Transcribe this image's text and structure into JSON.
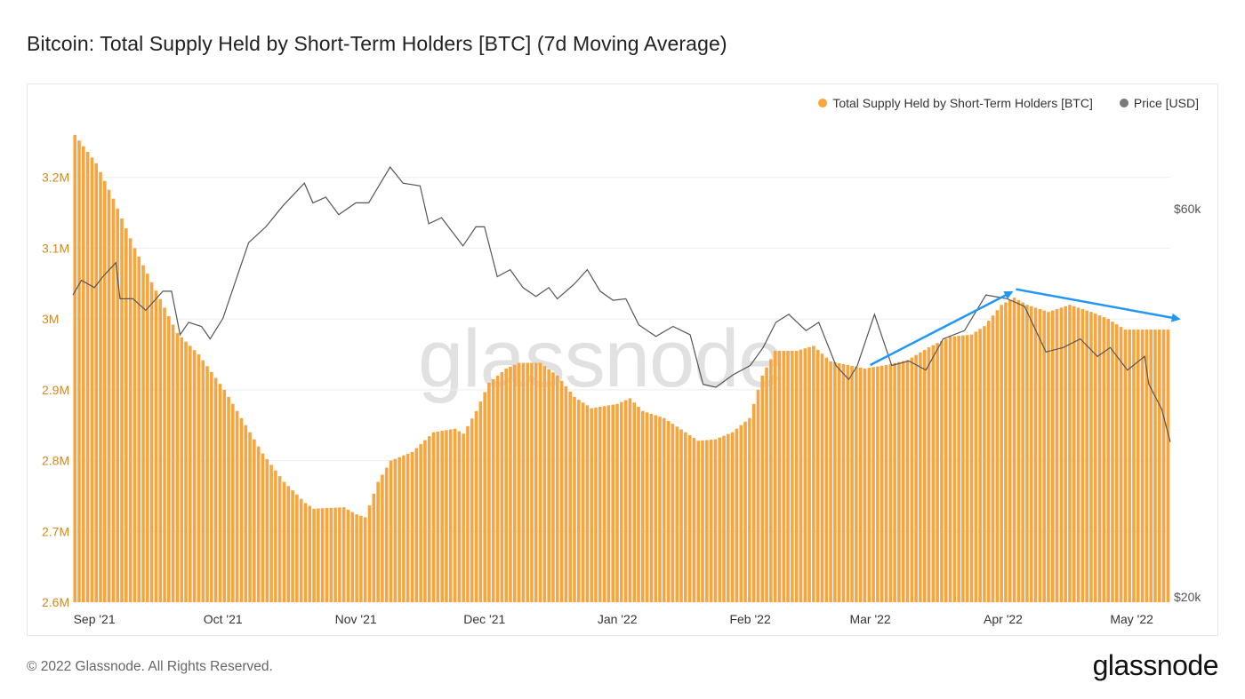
{
  "header": {
    "title": "Bitcoin: Total Supply Held by Short-Term Holders [BTC] (7d Moving Average)"
  },
  "legend": [
    {
      "label": "Total Supply Held by Short-Term Holders [BTC]",
      "color": "#f7a540"
    },
    {
      "label": "Price [USD]",
      "color": "#7a7a7a"
    }
  ],
  "watermark": "glassnode",
  "footer": {
    "copyright": "© 2022 Glassnode. All Rights Reserved.",
    "logo": "glassnode"
  },
  "chart_data": {
    "type": "bar",
    "title": "Bitcoin: Total Supply Held by Short-Term Holders [BTC] (7d Moving Average)",
    "x_range": [
      "2021-08-27",
      "2022-05-10"
    ],
    "x_ticks": [
      {
        "date": "2021-09-01",
        "label": "Sep '21"
      },
      {
        "date": "2021-10-01",
        "label": "Oct '21"
      },
      {
        "date": "2021-11-01",
        "label": "Nov '21"
      },
      {
        "date": "2021-12-01",
        "label": "Dec '21"
      },
      {
        "date": "2022-01-01",
        "label": "Jan '22"
      },
      {
        "date": "2022-02-01",
        "label": "Feb '22"
      },
      {
        "date": "2022-03-01",
        "label": "Mar '22"
      },
      {
        "date": "2022-04-01",
        "label": "Apr '22"
      },
      {
        "date": "2022-05-01",
        "label": "May '22"
      }
    ],
    "y_left": {
      "ylim": [
        2.6,
        3.3
      ],
      "unit": "M",
      "ticks": [
        {
          "value": 2.6,
          "label": "2.6M"
        },
        {
          "value": 2.7,
          "label": "2.7M"
        },
        {
          "value": 2.8,
          "label": "2.8M"
        },
        {
          "value": 2.9,
          "label": "2.9M"
        },
        {
          "value": 3.0,
          "label": "3M"
        },
        {
          "value": 3.1,
          "label": "3.1M"
        },
        {
          "value": 3.2,
          "label": "3.2M"
        }
      ]
    },
    "y_right": {
      "scale": "log",
      "ylim_k": [
        20,
        80
      ],
      "ticks": [
        {
          "value": 20,
          "label": "$20k"
        },
        {
          "value": 60,
          "label": "$60k"
        }
      ]
    },
    "grid": true,
    "legend_position": "top-right",
    "series": [
      {
        "name": "Total Supply Held by Short-Term Holders [BTC]",
        "kind": "bar",
        "axis": "left",
        "color": "#f7a540",
        "unit": "M BTC",
        "points": [
          [
            "2021-08-27",
            3.26
          ],
          [
            "2021-09-01",
            3.22
          ],
          [
            "2021-09-05",
            3.17
          ],
          [
            "2021-09-10",
            3.1
          ],
          [
            "2021-09-15",
            3.04
          ],
          [
            "2021-09-20",
            2.98
          ],
          [
            "2021-09-25",
            2.95
          ],
          [
            "2021-10-01",
            2.9
          ],
          [
            "2021-10-05",
            2.86
          ],
          [
            "2021-10-10",
            2.81
          ],
          [
            "2021-10-15",
            2.77
          ],
          [
            "2021-10-20",
            2.74
          ],
          [
            "2021-10-22",
            2.732
          ],
          [
            "2021-10-25",
            2.733
          ],
          [
            "2021-10-29",
            2.734
          ],
          [
            "2021-11-01",
            2.724
          ],
          [
            "2021-11-03",
            2.72
          ],
          [
            "2021-11-06",
            2.77
          ],
          [
            "2021-11-09",
            2.8
          ],
          [
            "2021-11-14",
            2.812
          ],
          [
            "2021-11-19",
            2.84
          ],
          [
            "2021-11-24",
            2.845
          ],
          [
            "2021-11-26",
            2.838
          ],
          [
            "2021-11-29",
            2.87
          ],
          [
            "2021-12-02",
            2.91
          ],
          [
            "2021-12-06",
            2.93
          ],
          [
            "2021-12-09",
            2.938
          ],
          [
            "2021-12-14",
            2.938
          ],
          [
            "2021-12-18",
            2.92
          ],
          [
            "2021-12-22",
            2.89
          ],
          [
            "2021-12-26",
            2.874
          ],
          [
            "2022-01-01",
            2.88
          ],
          [
            "2022-01-04",
            2.888
          ],
          [
            "2022-01-07",
            2.87
          ],
          [
            "2022-01-12",
            2.86
          ],
          [
            "2022-01-17",
            2.84
          ],
          [
            "2022-01-20",
            2.828
          ],
          [
            "2022-01-24",
            2.83
          ],
          [
            "2022-01-28",
            2.84
          ],
          [
            "2022-02-01",
            2.86
          ],
          [
            "2022-02-04",
            2.92
          ],
          [
            "2022-02-07",
            2.955
          ],
          [
            "2022-02-12",
            2.955
          ],
          [
            "2022-02-16",
            2.962
          ],
          [
            "2022-02-20",
            2.94
          ],
          [
            "2022-02-24",
            2.935
          ],
          [
            "2022-02-28",
            2.93
          ],
          [
            "2022-03-05",
            2.935
          ],
          [
            "2022-03-10",
            2.942
          ],
          [
            "2022-03-15",
            2.96
          ],
          [
            "2022-03-20",
            2.975
          ],
          [
            "2022-03-25",
            2.978
          ],
          [
            "2022-03-28",
            2.99
          ],
          [
            "2022-04-01",
            3.02
          ],
          [
            "2022-04-04",
            3.03
          ],
          [
            "2022-04-07",
            3.02
          ],
          [
            "2022-04-12",
            3.01
          ],
          [
            "2022-04-17",
            3.02
          ],
          [
            "2022-04-22",
            3.01
          ],
          [
            "2022-04-26",
            3.0
          ],
          [
            "2022-04-30",
            2.985
          ],
          [
            "2022-05-05",
            2.985
          ],
          [
            "2022-05-10",
            2.985
          ]
        ]
      },
      {
        "name": "Price [USD]",
        "kind": "line",
        "axis": "right",
        "color": "#7a7a7a",
        "unit": "k USD",
        "points": [
          [
            "2021-08-27",
            47
          ],
          [
            "2021-08-29",
            49
          ],
          [
            "2021-09-01",
            48
          ],
          [
            "2021-09-03",
            49.5
          ],
          [
            "2021-09-06",
            51.5
          ],
          [
            "2021-09-07",
            46.5
          ],
          [
            "2021-09-10",
            46.5
          ],
          [
            "2021-09-13",
            45
          ],
          [
            "2021-09-17",
            47.5
          ],
          [
            "2021-09-19",
            47.5
          ],
          [
            "2021-09-21",
            42
          ],
          [
            "2021-09-23",
            43.5
          ],
          [
            "2021-09-26",
            43
          ],
          [
            "2021-09-28",
            41.5
          ],
          [
            "2021-10-01",
            44
          ],
          [
            "2021-10-04",
            49
          ],
          [
            "2021-10-07",
            54.5
          ],
          [
            "2021-10-11",
            57
          ],
          [
            "2021-10-15",
            60.5
          ],
          [
            "2021-10-20",
            64.5
          ],
          [
            "2021-10-22",
            61
          ],
          [
            "2021-10-25",
            62
          ],
          [
            "2021-10-28",
            59
          ],
          [
            "2021-11-01",
            61
          ],
          [
            "2021-11-04",
            61
          ],
          [
            "2021-11-09",
            67.5
          ],
          [
            "2021-11-12",
            64.5
          ],
          [
            "2021-11-16",
            64
          ],
          [
            "2021-11-18",
            57.5
          ],
          [
            "2021-11-21",
            58.5
          ],
          [
            "2021-11-26",
            54
          ],
          [
            "2021-11-29",
            57
          ],
          [
            "2021-12-01",
            57
          ],
          [
            "2021-12-04",
            49.5
          ],
          [
            "2021-12-07",
            50.5
          ],
          [
            "2021-12-10",
            48
          ],
          [
            "2021-12-13",
            46.8
          ],
          [
            "2021-12-16",
            48
          ],
          [
            "2021-12-18",
            46.5
          ],
          [
            "2021-12-22",
            48.5
          ],
          [
            "2021-12-25",
            50.5
          ],
          [
            "2021-12-28",
            47.5
          ],
          [
            "2021-12-31",
            46.3
          ],
          [
            "2022-01-03",
            46.5
          ],
          [
            "2022-01-06",
            43.2
          ],
          [
            "2022-01-10",
            41.8
          ],
          [
            "2022-01-14",
            43
          ],
          [
            "2022-01-18",
            42
          ],
          [
            "2022-01-21",
            36.5
          ],
          [
            "2022-01-24",
            36.2
          ],
          [
            "2022-01-28",
            37.5
          ],
          [
            "2022-02-01",
            38.5
          ],
          [
            "2022-02-04",
            40.5
          ],
          [
            "2022-02-07",
            43.5
          ],
          [
            "2022-02-10",
            44.5
          ],
          [
            "2022-02-14",
            42.5
          ],
          [
            "2022-02-17",
            43.5
          ],
          [
            "2022-02-21",
            38.5
          ],
          [
            "2022-02-24",
            37
          ],
          [
            "2022-02-26",
            38.5
          ],
          [
            "2022-03-02",
            44.5
          ],
          [
            "2022-03-06",
            38.5
          ],
          [
            "2022-03-10",
            39
          ],
          [
            "2022-03-14",
            38
          ],
          [
            "2022-03-18",
            41.5
          ],
          [
            "2022-03-23",
            42.5
          ],
          [
            "2022-03-28",
            47
          ],
          [
            "2022-04-02",
            46.5
          ],
          [
            "2022-04-06",
            45.5
          ],
          [
            "2022-04-11",
            40
          ],
          [
            "2022-04-15",
            40.5
          ],
          [
            "2022-04-19",
            41.5
          ],
          [
            "2022-04-23",
            39.5
          ],
          [
            "2022-04-26",
            40.5
          ],
          [
            "2022-04-30",
            38
          ],
          [
            "2022-05-04",
            39.5
          ],
          [
            "2022-05-05",
            36.5
          ],
          [
            "2022-05-08",
            34
          ],
          [
            "2022-05-10",
            31
          ]
        ]
      }
    ],
    "annotations": [
      {
        "kind": "arrow",
        "color": "#2196f3",
        "from": [
          "2022-03-01",
          2.935
        ],
        "to": [
          "2022-04-03",
          3.038
        ]
      },
      {
        "kind": "arrow",
        "color": "#2196f3",
        "from": [
          "2022-04-04",
          3.042
        ],
        "to": [
          "2022-05-12",
          3.0
        ]
      }
    ]
  }
}
